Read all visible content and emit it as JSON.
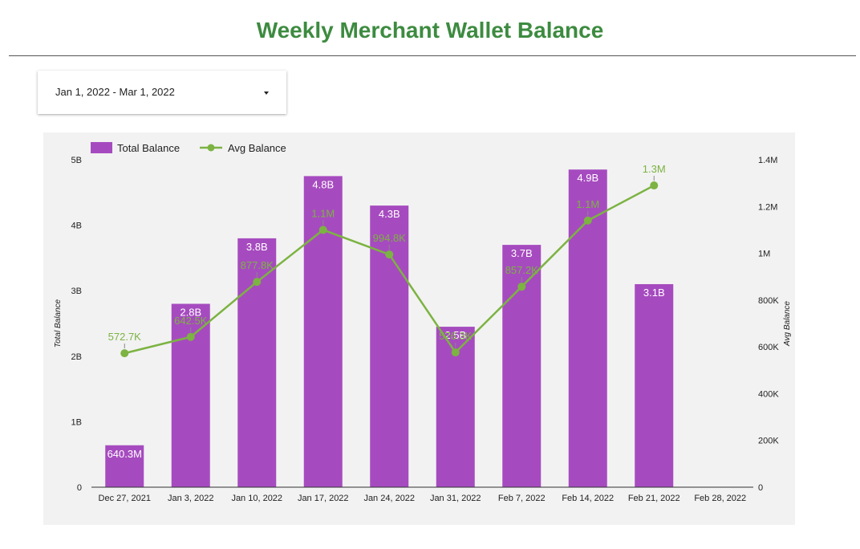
{
  "page": {
    "title": "Weekly Merchant Wallet Balance"
  },
  "date_range": {
    "value": "Jan 1, 2022 - Mar 1, 2022"
  },
  "colors": {
    "title": "#3d8b40",
    "bar": "#a64bbf",
    "line": "#7cb342",
    "panel": "#f2f2f2"
  },
  "icons": {
    "date_dropdown": "caret-down-icon"
  },
  "chart_data": {
    "type": "bar",
    "categories": [
      "Dec 27, 2021",
      "Jan 3, 2022",
      "Jan 10, 2022",
      "Jan 17, 2022",
      "Jan 24, 2022",
      "Jan 31, 2022",
      "Feb 7, 2022",
      "Feb 14, 2022",
      "Feb 21, 2022",
      "Feb 28, 2022"
    ],
    "series": [
      {
        "name": "Total Balance",
        "type": "bar",
        "axis": "left",
        "values": [
          640300000,
          2800000000,
          3800000000,
          4750000000,
          4300000000,
          2450000000,
          3700000000,
          4850000000,
          3100000000,
          null
        ],
        "labels": [
          "640.3M",
          "2.8B",
          "3.8B",
          "4.8B",
          "4.3B",
          "2.5B",
          "3.7B",
          "4.9B",
          "3.1B",
          null
        ]
      },
      {
        "name": "Avg Balance",
        "type": "line",
        "axis": "right",
        "values": [
          572700,
          642500,
          877800,
          1100000,
          994800,
          576300,
          857200,
          1140000,
          1290000,
          null
        ],
        "labels": [
          "572.7K",
          "642.5K",
          "877.8K",
          "1.1M",
          "994.8K",
          "576.3K",
          "857.2K",
          "1.1M",
          "1.3M",
          null
        ]
      }
    ],
    "left_axis": {
      "label": "Total Balance",
      "ylim": [
        0,
        5000000000
      ],
      "ticks": [
        0,
        1000000000,
        2000000000,
        3000000000,
        4000000000,
        5000000000
      ],
      "tick_labels": [
        "0",
        "1B",
        "2B",
        "3B",
        "4B",
        "5B"
      ]
    },
    "right_axis": {
      "label": "Avg Balance",
      "ylim": [
        0,
        1400000
      ],
      "ticks": [
        0,
        200000,
        400000,
        600000,
        800000,
        1000000,
        1200000,
        1400000
      ],
      "tick_labels": [
        "0",
        "200K",
        "400K",
        "600K",
        "800K",
        "1M",
        "1.2M",
        "1.4M"
      ]
    },
    "legend": {
      "position": "top-left"
    },
    "grid": false
  }
}
